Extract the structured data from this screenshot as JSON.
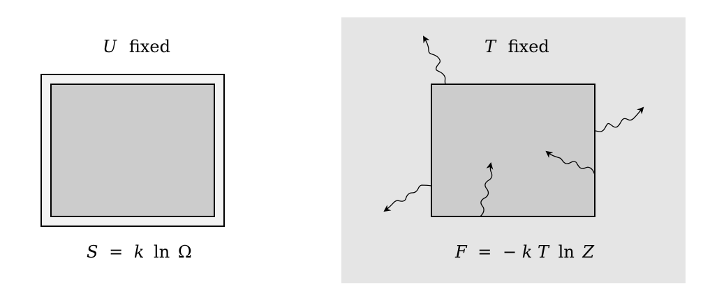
{
  "panels": {
    "left": {
      "label": {
        "var": "U",
        "text": "fixed"
      },
      "formula": {
        "S": "S",
        "eq": "=",
        "k": "k",
        "ln": "ln",
        "omega": "Ω"
      },
      "colors": {
        "outer": "#f3f3f3",
        "inner": "#cccccc",
        "stroke": "#000000"
      }
    },
    "right": {
      "label": {
        "var": "T",
        "text": "fixed"
      },
      "formula": {
        "F": "F",
        "eq": "=",
        "minus": "−",
        "k": "k",
        "T": "T",
        "ln": "ln",
        "Z": "Z"
      },
      "colors": {
        "background": "#e5e5e5",
        "box": "#cccccc",
        "stroke": "#000000"
      },
      "arrows": [
        {
          "name": "wavy-arrow-top-left",
          "direction": "outward"
        },
        {
          "name": "wavy-arrow-right-up",
          "direction": "outward"
        },
        {
          "name": "wavy-arrow-right-inward",
          "direction": "inward"
        },
        {
          "name": "wavy-arrow-bottom-up",
          "direction": "inward"
        },
        {
          "name": "wavy-arrow-left-down",
          "direction": "outward"
        }
      ]
    }
  }
}
